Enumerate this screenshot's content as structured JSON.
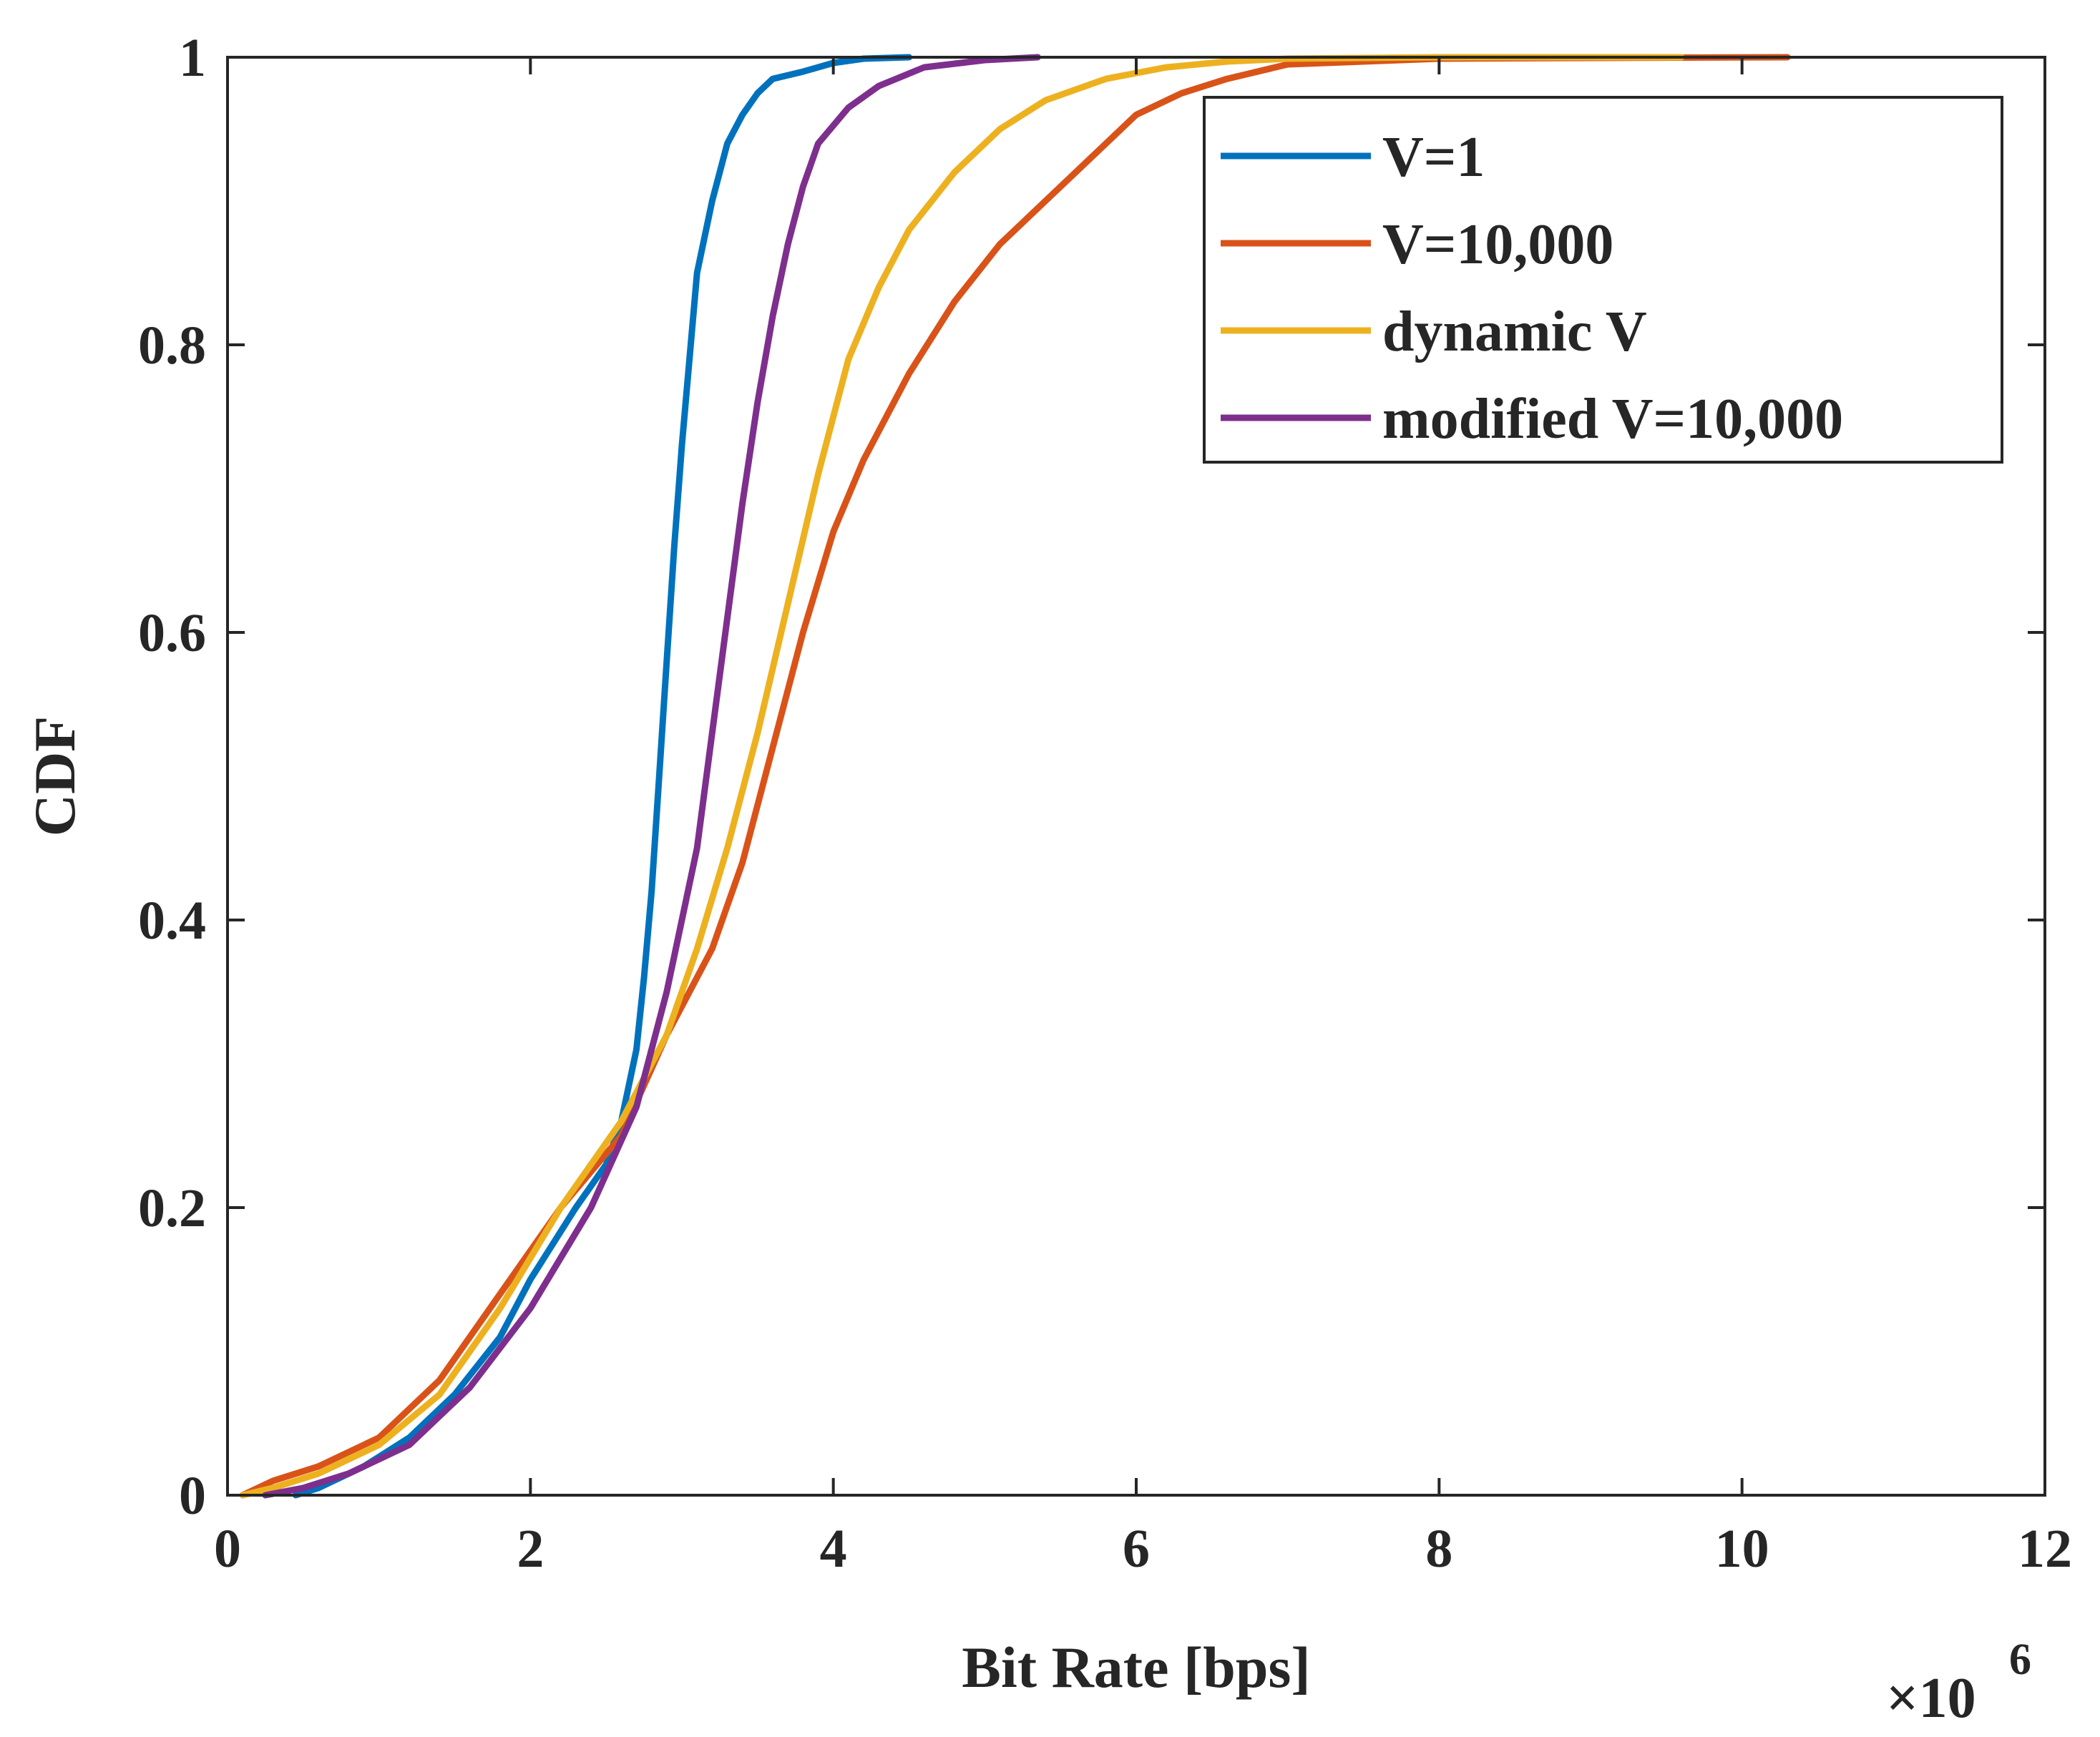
{
  "chart_data": {
    "type": "line",
    "title": "",
    "xlabel": "Bit Rate [bps]",
    "ylabel": "CDF",
    "x_multiplier_label": "×10",
    "x_multiplier_exponent": "6",
    "xlim": [
      0,
      12
    ],
    "ylim": [
      0,
      1
    ],
    "x_ticks": [
      0,
      2,
      4,
      6,
      8,
      10,
      12
    ],
    "y_ticks": [
      0,
      0.2,
      0.4,
      0.6,
      0.8,
      1
    ],
    "x_tick_labels": [
      "0",
      "2",
      "4",
      "6",
      "8",
      "10",
      "12"
    ],
    "y_tick_labels": [
      "0",
      "0.2",
      "0.4",
      "0.6",
      "0.8",
      "1"
    ],
    "grid": false,
    "legend_position": "top-right",
    "units_note": "x values in units of 10^6 bps",
    "series": [
      {
        "name": "V=1",
        "color": "#0072BD",
        "x": [
          0.45,
          0.6,
          0.9,
          1.2,
          1.5,
          1.8,
          2.0,
          2.3,
          2.5,
          2.6,
          2.7,
          2.75,
          2.8,
          2.85,
          2.9,
          2.95,
          3.0,
          3.05,
          3.1,
          3.2,
          3.3,
          3.4,
          3.5,
          3.6,
          3.8,
          4.0,
          4.2,
          4.5
        ],
        "y": [
          0.0,
          0.005,
          0.02,
          0.04,
          0.07,
          0.11,
          0.15,
          0.2,
          0.23,
          0.26,
          0.31,
          0.36,
          0.42,
          0.5,
          0.58,
          0.66,
          0.73,
          0.79,
          0.85,
          0.9,
          0.94,
          0.96,
          0.975,
          0.985,
          0.99,
          0.996,
          0.999,
          1.0
        ]
      },
      {
        "name": "V=10,000",
        "color": "#D95319",
        "x": [
          0.1,
          0.3,
          0.6,
          1.0,
          1.4,
          1.8,
          2.2,
          2.6,
          2.9,
          3.2,
          3.4,
          3.6,
          3.8,
          4.0,
          4.2,
          4.5,
          4.8,
          5.1,
          5.5,
          5.8,
          6.0,
          6.3,
          6.6,
          7.0,
          8.0,
          9.0,
          10.3
        ],
        "y": [
          0.0,
          0.01,
          0.02,
          0.04,
          0.08,
          0.14,
          0.2,
          0.25,
          0.32,
          0.38,
          0.44,
          0.52,
          0.6,
          0.67,
          0.72,
          0.78,
          0.83,
          0.87,
          0.91,
          0.94,
          0.96,
          0.975,
          0.985,
          0.995,
          0.999,
          0.9995,
          1.0
        ]
      },
      {
        "name": "dynamic V",
        "color": "#EDB120",
        "x": [
          0.1,
          0.3,
          0.6,
          1.0,
          1.4,
          1.8,
          2.2,
          2.6,
          2.9,
          3.1,
          3.3,
          3.5,
          3.7,
          3.9,
          4.1,
          4.3,
          4.5,
          4.8,
          5.1,
          5.4,
          5.8,
          6.2,
          6.6,
          7.0,
          8.0,
          9.6
        ],
        "y": [
          0.0,
          0.005,
          0.015,
          0.035,
          0.07,
          0.13,
          0.2,
          0.26,
          0.32,
          0.38,
          0.45,
          0.53,
          0.62,
          0.71,
          0.79,
          0.84,
          0.88,
          0.92,
          0.95,
          0.97,
          0.985,
          0.993,
          0.997,
          0.999,
          1.0,
          1.0
        ]
      },
      {
        "name": "modified V=10,000",
        "color": "#7E2F8E",
        "x": [
          0.25,
          0.5,
          0.8,
          1.2,
          1.6,
          2.0,
          2.4,
          2.7,
          2.9,
          3.1,
          3.2,
          3.3,
          3.4,
          3.5,
          3.6,
          3.7,
          3.8,
          3.9,
          4.1,
          4.3,
          4.6,
          5.0,
          5.35
        ],
        "y": [
          0.0,
          0.005,
          0.015,
          0.035,
          0.075,
          0.13,
          0.2,
          0.27,
          0.35,
          0.45,
          0.53,
          0.61,
          0.69,
          0.76,
          0.82,
          0.87,
          0.91,
          0.94,
          0.965,
          0.98,
          0.993,
          0.998,
          1.0
        ]
      }
    ]
  }
}
